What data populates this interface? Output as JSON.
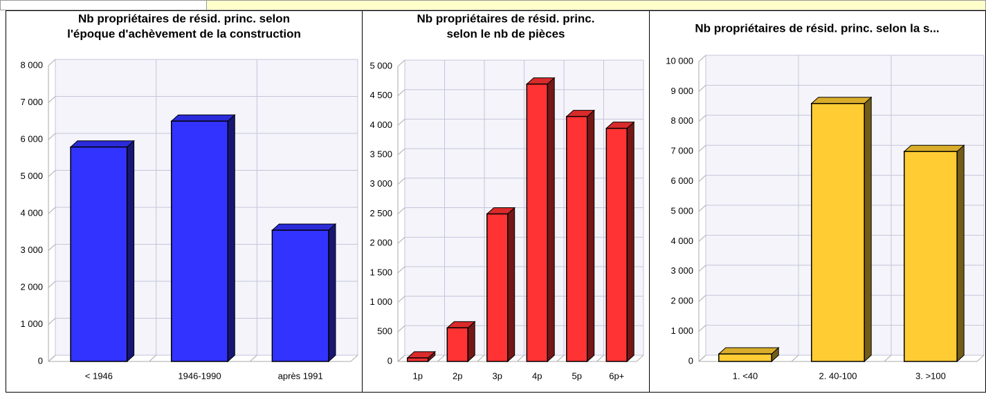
{
  "chart_data": [
    {
      "type": "bar",
      "title": [
        "Nb propriétaires de résid. princ. selon",
        "l'époque d'achèvement de la construction"
      ],
      "categories": [
        "< 1946",
        "1946-1990",
        "après 1991"
      ],
      "values": [
        5800,
        6500,
        3550
      ],
      "color": "#3333ff",
      "ylim": [
        0,
        8000
      ],
      "yticks": [
        0,
        {
          "value": 1000,
          "label": "1 000"
        },
        {
          "value": 2000,
          "label": "2 000"
        },
        {
          "value": 3000,
          "label": "3 000"
        },
        {
          "value": 4000,
          "label": "4 000"
        },
        {
          "value": 5000,
          "label": "5 000"
        },
        {
          "value": 6000,
          "label": "6 000"
        },
        {
          "value": 7000,
          "label": "7 000"
        },
        {
          "value": 8000,
          "label": "8 000"
        }
      ],
      "grid": true
    },
    {
      "type": "bar",
      "title": [
        "Nb propriétaires de résid. princ.",
        "selon le nb de pièces"
      ],
      "categories": [
        "1p",
        "2p",
        "3p",
        "4p",
        "5p",
        "6p+"
      ],
      "values": [
        60,
        570,
        2500,
        4700,
        4150,
        3950
      ],
      "color": "#ff3333",
      "ylim": [
        0,
        5000
      ],
      "yticks": [
        0,
        500,
        {
          "value": 1000,
          "label": "1 000"
        },
        {
          "value": 1500,
          "label": "1 500"
        },
        {
          "value": 2000,
          "label": "2 000"
        },
        {
          "value": 2500,
          "label": "2 500"
        },
        {
          "value": 3000,
          "label": "3 000"
        },
        {
          "value": 3500,
          "label": "3 500"
        },
        {
          "value": 4000,
          "label": "4 000"
        },
        {
          "value": 4500,
          "label": "4 500"
        },
        {
          "value": 5000,
          "label": "5 000"
        }
      ],
      "grid": true
    },
    {
      "type": "bar",
      "title": [
        "Nb propriétaires de résid. princ. selon la s..."
      ],
      "categories": [
        "1. <40",
        "2. 40-100",
        "3. >100"
      ],
      "values": [
        250,
        8600,
        7000
      ],
      "color": "#ffcc33",
      "ylim": [
        0,
        10000
      ],
      "yticks": [
        0,
        {
          "value": 1000,
          "label": "1 000"
        },
        {
          "value": 2000,
          "label": "2 000"
        },
        {
          "value": 3000,
          "label": "3 000"
        },
        {
          "value": 4000,
          "label": "4 000"
        },
        {
          "value": 5000,
          "label": "5 000"
        },
        {
          "value": 6000,
          "label": "6 000"
        },
        {
          "value": 7000,
          "label": "7 000"
        },
        {
          "value": 8000,
          "label": "8 000"
        },
        {
          "value": 9000,
          "label": "9 000"
        },
        {
          "value": 10000,
          "label": "10 000"
        }
      ],
      "grid": true
    }
  ]
}
